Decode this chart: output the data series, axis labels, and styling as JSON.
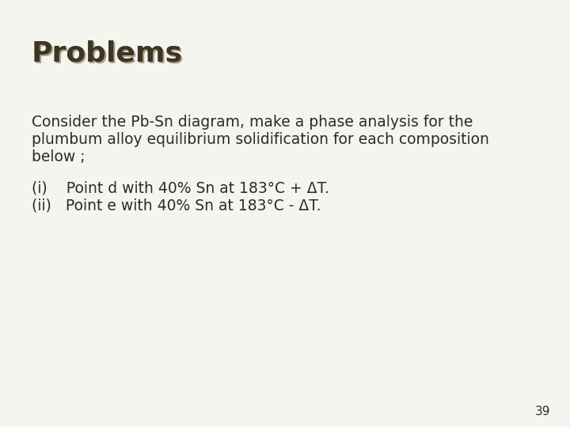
{
  "title": "Problems",
  "title_color": "#3d3520",
  "title_shadow_color": "#aaa090",
  "title_fontsize": 26,
  "body_color": "#2b2b2b",
  "body_fontsize": 13.5,
  "background_color": "#f5f5f0",
  "page_number": "39",
  "paragraph1_line1": "Consider the Pb-Sn diagram, make a phase analysis for the",
  "paragraph1_line2": "plumbum alloy equilibrium solidification for each composition",
  "paragraph1_line3": "below ;",
  "item_i": "(i)    Point d with 40% Sn at 183°C + ΔT.",
  "item_ii": "(ii)   Point e with 40% Sn at 183°C - ΔT."
}
